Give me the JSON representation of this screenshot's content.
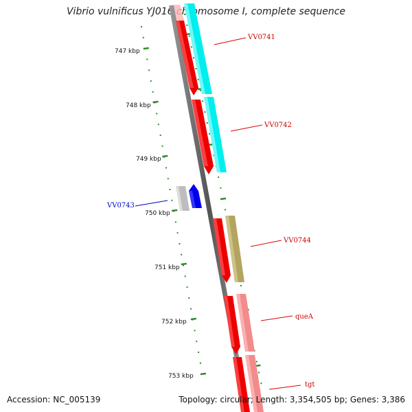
{
  "title": "Vibrio vulnificus YJ016 chromosome I, complete sequence",
  "footer": {
    "accession": "Accession: NC_005139",
    "summary": "Topology: circular; Length: 3,354,505 bp; Genes: 3,386"
  },
  "ruler": {
    "ticks": [
      "747 kbp",
      "748 kbp",
      "749 kbp",
      "750 kbp",
      "751 kbp",
      "752 kbp",
      "753 kbp"
    ]
  },
  "genes": [
    {
      "name": "VV0741",
      "strand": "reverse",
      "color": "#cc0000",
      "feature_color": "#00e5e5"
    },
    {
      "name": "VV0742",
      "strand": "reverse",
      "color": "#cc0000",
      "feature_color": "#00e5e5"
    },
    {
      "name": "VV0743",
      "strand": "forward",
      "color": "#0000cc",
      "feature_color": "#b0b0b0"
    },
    {
      "name": "VV0744",
      "strand": "reverse",
      "color": "#cc0000",
      "feature_color": "#a89a55"
    },
    {
      "name": "queA",
      "strand": "reverse",
      "color": "#cc0000",
      "feature_color": "#f08080"
    },
    {
      "name": "tgt",
      "strand": "reverse",
      "color": "#cc0000",
      "feature_color": "#f08080"
    }
  ]
}
